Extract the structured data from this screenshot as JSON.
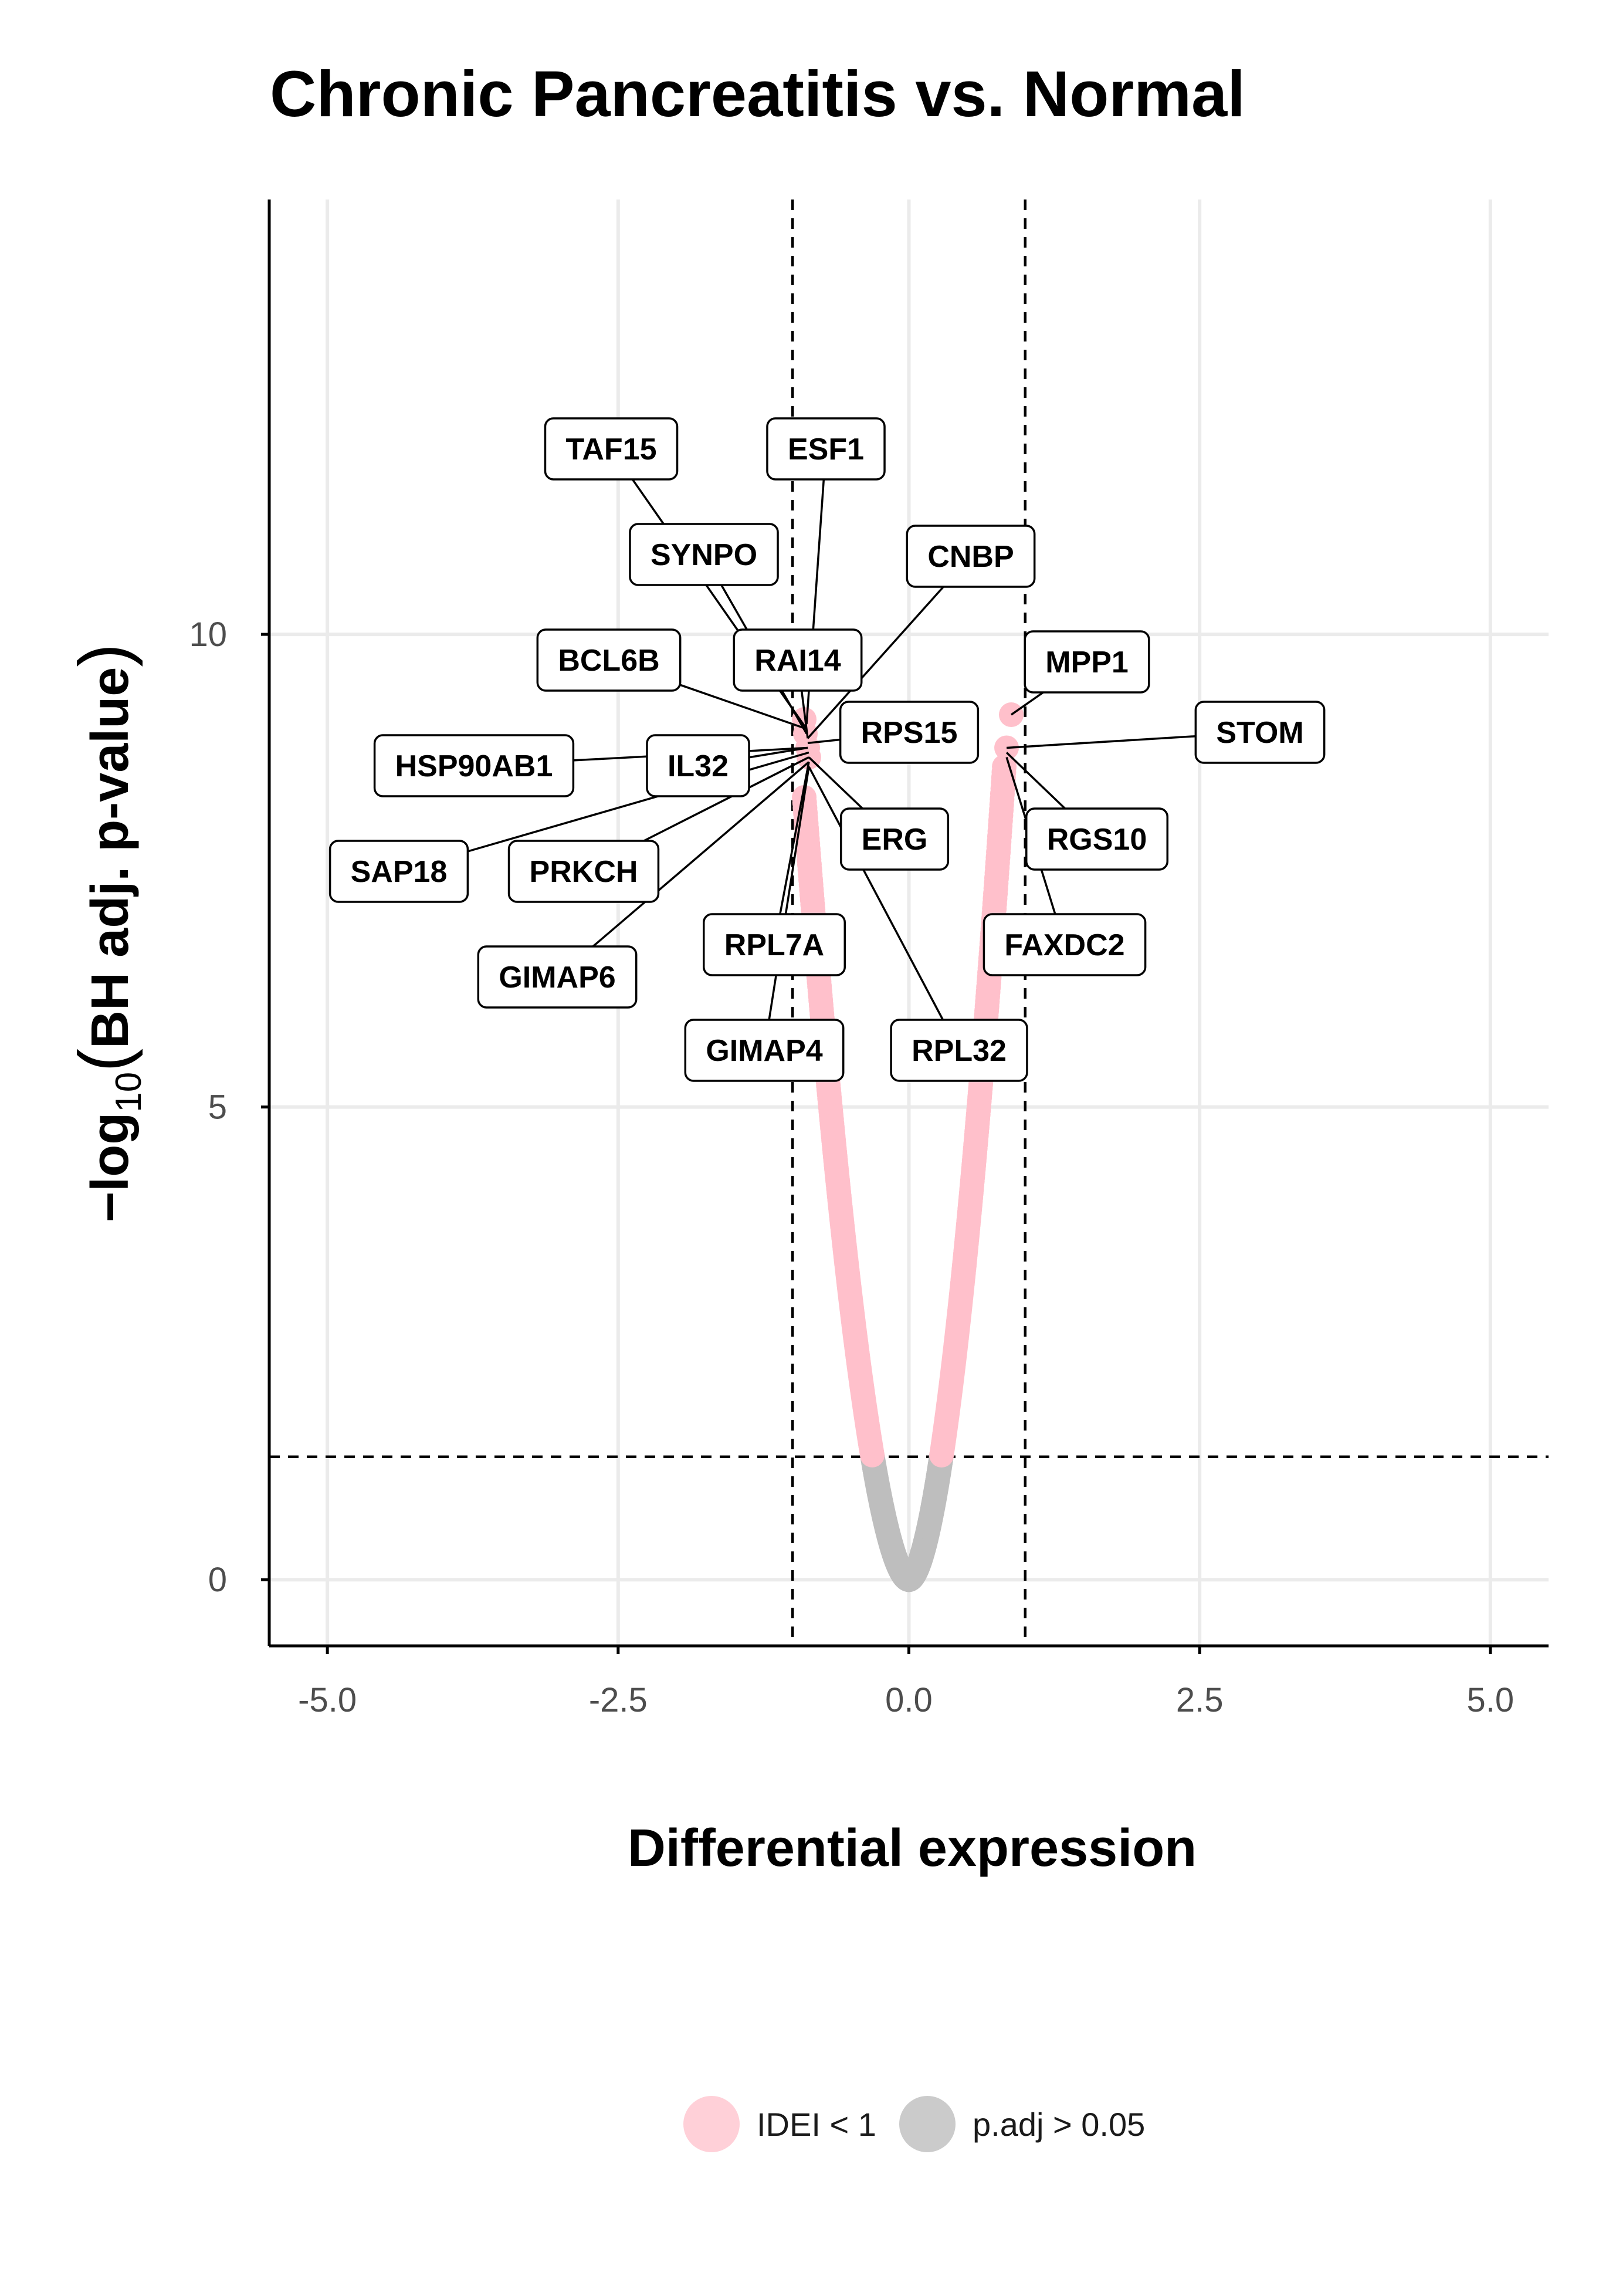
{
  "chart_data": {
    "type": "scatter",
    "title": "Chronic Pancreatitis vs. Normal",
    "xlabel": "Differential expression",
    "ylabel_parts": {
      "prefix": "−log",
      "subscript": "10",
      "open": "(",
      "inner": "BH adj. p-value",
      "close": ")"
    },
    "xlim": [
      -5.5,
      5.5
    ],
    "ylim": [
      -0.7,
      14.6
    ],
    "x_ticks": [
      -5.0,
      -2.5,
      0.0,
      2.5,
      5.0
    ],
    "x_tick_labels": [
      "-5.0",
      "-2.5",
      "0.0",
      "2.5",
      "5.0"
    ],
    "y_ticks": [
      0,
      5,
      10
    ],
    "y_tick_labels": [
      "0",
      "5",
      "10"
    ],
    "grid": true,
    "thresholds": {
      "x": [
        -1.0,
        1.0
      ],
      "y": [
        1.3
      ]
    },
    "colors": {
      "pink": "#ffc0cb",
      "grey": "#bebebe"
    },
    "curve": {
      "description_free": true,
      "left_branch_x_range": [
        -0.92,
        0
      ],
      "right_branch_x_range": [
        0,
        0.82
      ],
      "padj_cutoff_y": 1.3
    },
    "points": [
      {
        "x": 0.88,
        "y": 9.15,
        "color": "pink"
      },
      {
        "x": 0.84,
        "y": 8.8,
        "color": "pink"
      },
      {
        "x": -0.9,
        "y": 9.1,
        "color": "pink"
      },
      {
        "x": -0.89,
        "y": 8.95,
        "color": "pink"
      },
      {
        "x": -0.87,
        "y": 8.8,
        "color": "pink"
      },
      {
        "x": -0.86,
        "y": 8.7,
        "color": "pink"
      }
    ],
    "labels": [
      {
        "gene": "TAF15",
        "x": -0.88,
        "y": 9.0
      },
      {
        "gene": "ESF1",
        "x": -0.88,
        "y": 9.05
      },
      {
        "gene": "SYNPO",
        "x": -0.88,
        "y": 8.95
      },
      {
        "gene": "CNBP",
        "x": -0.87,
        "y": 8.9
      },
      {
        "gene": "BCL6B",
        "x": -0.88,
        "y": 9.0
      },
      {
        "gene": "RAI14",
        "x": -0.87,
        "y": 8.9
      },
      {
        "gene": "MPP1",
        "x": 0.88,
        "y": 9.15
      },
      {
        "gene": "RPS15",
        "x": -0.87,
        "y": 8.85
      },
      {
        "gene": "STOM",
        "x": 0.84,
        "y": 8.8
      },
      {
        "gene": "HSP90AB1",
        "x": -0.87,
        "y": 8.8
      },
      {
        "gene": "IL32",
        "x": -0.87,
        "y": 8.8
      },
      {
        "gene": "SAP18",
        "x": -0.86,
        "y": 8.75
      },
      {
        "gene": "PRKCH",
        "x": -0.86,
        "y": 8.7
      },
      {
        "gene": "ERG",
        "x": -0.86,
        "y": 8.7
      },
      {
        "gene": "RGS10",
        "x": 0.84,
        "y": 8.75
      },
      {
        "gene": "GIMAP6",
        "x": -0.86,
        "y": 8.65
      },
      {
        "gene": "RPL7A",
        "x": -0.86,
        "y": 8.65
      },
      {
        "gene": "FAXDC2",
        "x": 0.84,
        "y": 8.7
      },
      {
        "gene": "GIMAP4",
        "x": -0.86,
        "y": 8.6
      },
      {
        "gene": "RPL32",
        "x": -0.86,
        "y": 8.6
      }
    ],
    "legend": {
      "position": "bottom",
      "items": [
        {
          "label": "IDEI < 1",
          "color": "#ffc0cb"
        },
        {
          "label": "p.adj > 0.05",
          "color": "#bebebe"
        }
      ]
    }
  }
}
